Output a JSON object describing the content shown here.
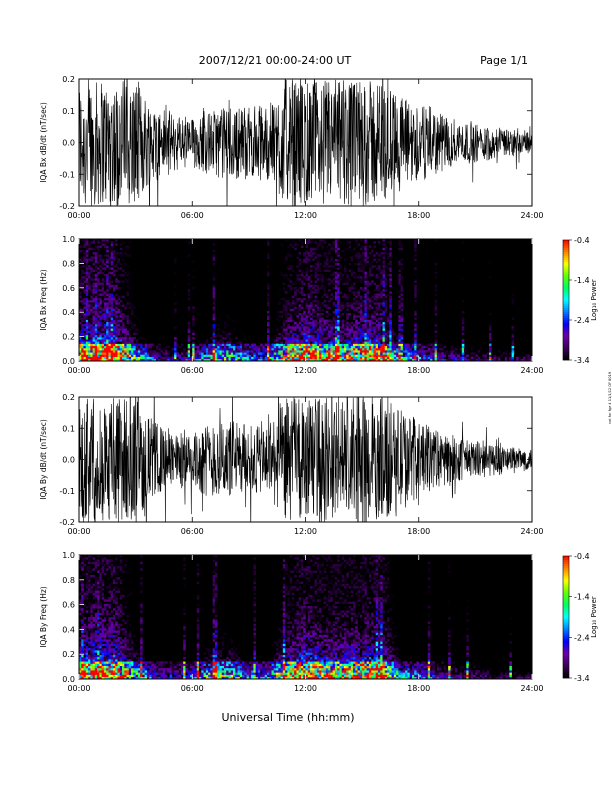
{
  "header": {
    "title": "2007/12/21  00:00-24:00 UT",
    "page": "Page 1/1"
  },
  "footer": {
    "xlabel": "Universal Time (hh:mm)",
    "side_note": "not for fge 4 11/1/12 DF 8019"
  },
  "colors": {
    "trace": "#000000",
    "spectrogram_background": "#000000"
  },
  "colorbar": {
    "label": "Log₁₀ Power",
    "ticks": [
      "-0.4",
      "-1.4",
      "-2.4",
      "-3.4"
    ],
    "range": [
      -3.4,
      -0.4
    ],
    "colormap": [
      "#000000",
      "#3c005a",
      "#6a00a8",
      "#0000ff",
      "#0080ff",
      "#00ffff",
      "#00ff60",
      "#60ff00",
      "#ffff00",
      "#ff8000",
      "#ff0000"
    ]
  },
  "chart_data": [
    {
      "type": "line",
      "ylabel": "IQA Bx dB/dt (nT/sec)",
      "x_ticks": [
        "00:00",
        "06:00",
        "12:00",
        "18:00",
        "24:00"
      ],
      "xlim": [
        0,
        24
      ],
      "ylim": [
        -0.2,
        0.2
      ],
      "y_ticks": [
        "0.2",
        "0.1",
        "0.0",
        "-0.1",
        "-0.2"
      ],
      "x": [
        0,
        1,
        2,
        3,
        4,
        5,
        6,
        7,
        8,
        9,
        10,
        11,
        12,
        13,
        14,
        15,
        16,
        17,
        18,
        19,
        20,
        21,
        22,
        23,
        24
      ],
      "envelope": [
        0.2,
        0.2,
        0.2,
        0.2,
        0.12,
        0.09,
        0.08,
        0.1,
        0.12,
        0.11,
        0.12,
        0.2,
        0.2,
        0.2,
        0.2,
        0.2,
        0.2,
        0.15,
        0.12,
        0.1,
        0.07,
        0.06,
        0.05,
        0.04,
        0.03
      ]
    },
    {
      "type": "heatmap",
      "ylabel": "IQA Bx Freq (Hz)",
      "x_ticks": [
        "00:00",
        "06:00",
        "12:00",
        "18:00",
        "24:00"
      ],
      "xlim": [
        0,
        24
      ],
      "ylim": [
        0.0,
        1.0
      ],
      "y_ticks": [
        "1.0",
        "0.8",
        "0.6",
        "0.4",
        "0.2",
        "0.0"
      ],
      "z_units": "log10 power",
      "zlim": [
        -3.4,
        -0.4
      ],
      "activity": [
        0.9,
        1.0,
        0.95,
        0.6,
        0.35,
        0.3,
        0.35,
        0.55,
        0.6,
        0.45,
        0.45,
        0.8,
        0.95,
        0.85,
        0.8,
        0.9,
        0.9,
        0.5,
        0.45,
        0.35,
        0.3,
        0.28,
        0.25,
        0.25,
        0.25
      ]
    },
    {
      "type": "line",
      "ylabel": "IQA By dB/dt (nT/sec)",
      "x_ticks": [
        "00:00",
        "06:00",
        "12:00",
        "18:00",
        "24:00"
      ],
      "xlim": [
        0,
        24
      ],
      "ylim": [
        -0.2,
        0.2
      ],
      "y_ticks": [
        "0.2",
        "0.1",
        "0.0",
        "-0.1",
        "-0.2"
      ],
      "x": [
        0,
        1,
        2,
        3,
        4,
        5,
        6,
        7,
        8,
        9,
        10,
        11,
        12,
        13,
        14,
        15,
        16,
        17,
        18,
        19,
        20,
        21,
        22,
        23,
        24
      ],
      "envelope": [
        0.2,
        0.2,
        0.2,
        0.2,
        0.12,
        0.09,
        0.09,
        0.12,
        0.13,
        0.11,
        0.12,
        0.2,
        0.2,
        0.2,
        0.2,
        0.2,
        0.2,
        0.17,
        0.13,
        0.09,
        0.07,
        0.06,
        0.05,
        0.04,
        0.035
      ]
    },
    {
      "type": "heatmap",
      "ylabel": "IQA By Freq (Hz)",
      "x_ticks": [
        "00:00",
        "06:00",
        "12:00",
        "18:00",
        "24:00"
      ],
      "xlim": [
        0,
        24
      ],
      "ylim": [
        0.0,
        1.0
      ],
      "y_ticks": [
        "1.0",
        "0.8",
        "0.6",
        "0.4",
        "0.2",
        "0.0"
      ],
      "z_units": "log10 power",
      "zlim": [
        -3.4,
        -0.4
      ],
      "activity": [
        0.9,
        1.0,
        0.95,
        0.6,
        0.4,
        0.35,
        0.4,
        0.6,
        0.6,
        0.45,
        0.45,
        0.8,
        0.95,
        0.85,
        0.85,
        0.9,
        0.95,
        0.5,
        0.45,
        0.35,
        0.3,
        0.28,
        0.25,
        0.22,
        0.22
      ]
    }
  ]
}
